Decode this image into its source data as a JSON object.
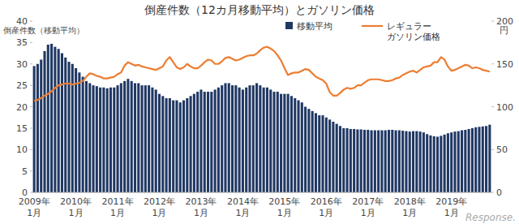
{
  "chart_data": {
    "type": "bar",
    "title": "倒産件数（12カ月移動平均）とガソリン価格",
    "y_label": "倒産件数（移動平均）",
    "y2_label": "円",
    "annotations": [
      "Response."
    ],
    "categories": [
      "2009年1月",
      null,
      null,
      null,
      null,
      null,
      null,
      null,
      null,
      null,
      null,
      null,
      "2010年1月",
      null,
      null,
      null,
      null,
      null,
      null,
      null,
      null,
      null,
      null,
      null,
      "2011年1月",
      null,
      null,
      null,
      null,
      null,
      null,
      null,
      null,
      null,
      null,
      null,
      "2012年1月",
      null,
      null,
      null,
      null,
      null,
      null,
      null,
      null,
      null,
      null,
      null,
      "2013年1月",
      null,
      null,
      null,
      null,
      null,
      null,
      null,
      null,
      null,
      null,
      null,
      "2014年1月",
      null,
      null,
      null,
      null,
      null,
      null,
      null,
      null,
      null,
      null,
      null,
      "2015年1月",
      null,
      null,
      null,
      null,
      null,
      null,
      null,
      null,
      null,
      null,
      null,
      "2016年1月",
      null,
      null,
      null,
      null,
      null,
      null,
      null,
      null,
      null,
      null,
      null,
      "2017年1月",
      null,
      null,
      null,
      null,
      null,
      null,
      null,
      null,
      null,
      null,
      null,
      "2018年1月",
      null,
      null,
      null,
      null,
      null,
      null,
      null,
      null,
      null,
      null,
      null,
      "2019年1月",
      null,
      null,
      null,
      null,
      null,
      null,
      null,
      null,
      null,
      null,
      null
    ],
    "series": [
      {
        "name": "移動平均",
        "type": "bar",
        "color": "#203864",
        "values": [
          29.5,
          30,
          31,
          33,
          34.5,
          34.7,
          34,
          33.5,
          32.5,
          31.5,
          30.5,
          30,
          29,
          28,
          27,
          26,
          25.5,
          25,
          24.8,
          24.5,
          24.5,
          24.3,
          24.5,
          24.5,
          25,
          25.5,
          26,
          26.5,
          26,
          25.5,
          25.5,
          25,
          25,
          25,
          24.5,
          24,
          23,
          22.5,
          22,
          22,
          21.5,
          21.5,
          21,
          21.5,
          22,
          22.5,
          23,
          23.5,
          24,
          23.5,
          23.5,
          23.5,
          24,
          24.5,
          25,
          25.5,
          25.5,
          25,
          25,
          24.5,
          24,
          24.5,
          25,
          25,
          25.5,
          25,
          24.5,
          24.5,
          24,
          23.5,
          23.5,
          23,
          23,
          23,
          22.5,
          22,
          21.5,
          21,
          20,
          19.5,
          19,
          18.5,
          18,
          18,
          17.5,
          17,
          16.5,
          16,
          15.5,
          15,
          15,
          14.8,
          14.8,
          14.7,
          14.7,
          14.6,
          14.6,
          14.5,
          14.5,
          14.5,
          14.5,
          14.5,
          14.6,
          14.6,
          14.5,
          14.5,
          14.4,
          14.3,
          14.2,
          14.3,
          14.3,
          14.2,
          14,
          13.6,
          13.3,
          13.1,
          13,
          13.2,
          13.5,
          13.8,
          14,
          14.2,
          14.3,
          14.5,
          14.6,
          14.8,
          15,
          15.2,
          15.3,
          15.4,
          15.5,
          15.8
        ]
      },
      {
        "name": "レギュラー\nガソリン価格",
        "type": "line",
        "axis": "y2",
        "color": "#ED7D31",
        "values": [
          107,
          108,
          110,
          113,
          115,
          118,
          122,
          125,
          126,
          127,
          127,
          126,
          127,
          128,
          130,
          135,
          139,
          138,
          136,
          135,
          133,
          133,
          134,
          135,
          138,
          140,
          148,
          152,
          150,
          148,
          149,
          147,
          146,
          145,
          144,
          143,
          145,
          147,
          154,
          158,
          152,
          146,
          144,
          146,
          150,
          147,
          145,
          145,
          148,
          152,
          155,
          154,
          150,
          150,
          153,
          157,
          158,
          156,
          154,
          155,
          157,
          159,
          160,
          160,
          162,
          166,
          169,
          170,
          168,
          165,
          160,
          154,
          145,
          137,
          139,
          140,
          140,
          142,
          144,
          143,
          139,
          135,
          133,
          131,
          127,
          117,
          113,
          113,
          116,
          120,
          122,
          121,
          122,
          125,
          125,
          128,
          131,
          132,
          132,
          132,
          131,
          130,
          130,
          131,
          133,
          134,
          137,
          139,
          141,
          142,
          140,
          143,
          146,
          147,
          148,
          152,
          152,
          158,
          155,
          147,
          142,
          143,
          145,
          147,
          149,
          148,
          145,
          146,
          145,
          143,
          142,
          141
        ]
      }
    ],
    "ylim": [
      0,
      40
    ],
    "yticks": [
      0,
      5,
      10,
      15,
      20,
      25,
      30,
      35,
      40
    ],
    "y2lim": [
      0,
      200
    ],
    "y2ticks": [
      0,
      50,
      100,
      150,
      200
    ],
    "grid": false
  }
}
